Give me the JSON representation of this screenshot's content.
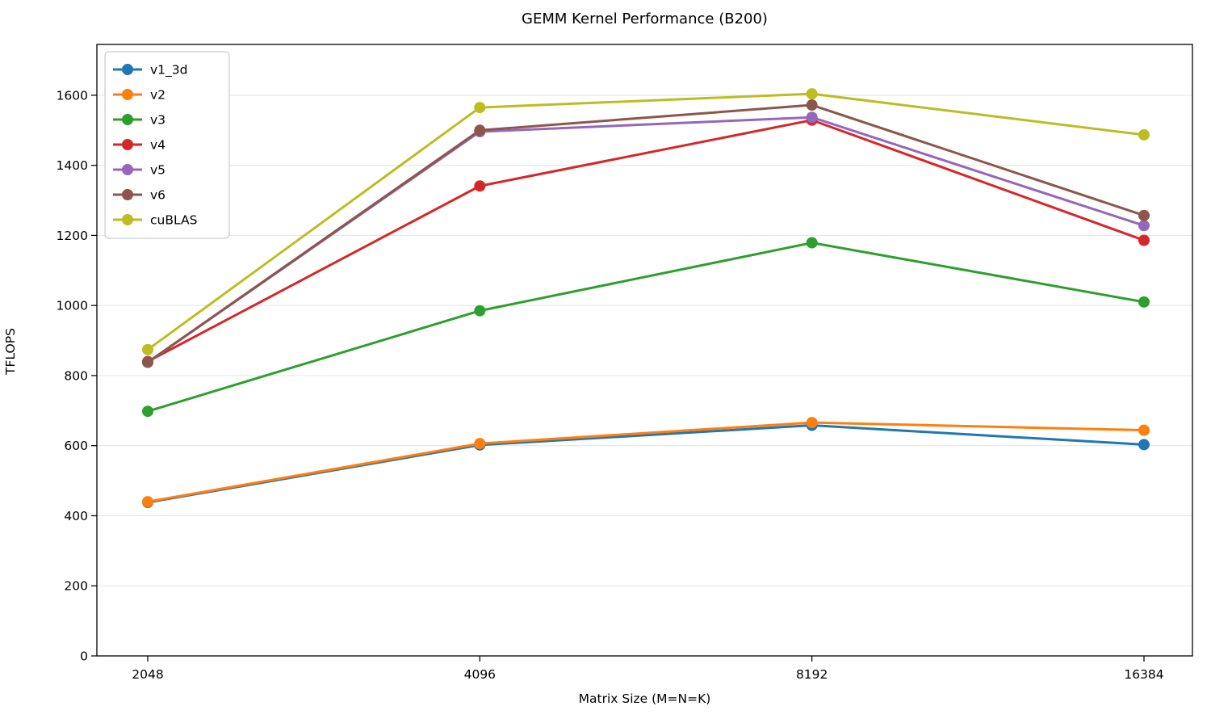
{
  "figure": {
    "background": "#ffffff",
    "text_color": "#000000",
    "grid_color": "#e6e6e6",
    "spine_color": "#000000",
    "legend_border_color": "#cccccc"
  },
  "chart_data": {
    "type": "line",
    "title": "GEMM Kernel Performance (B200)",
    "xlabel": "Matrix Size (M=N=K)",
    "ylabel": "TFLOPS",
    "categories": [
      "2048",
      "4096",
      "8192",
      "16384"
    ],
    "series": [
      {
        "name": "v1_3d",
        "color": "#1f77b4",
        "values": [
          438,
          602,
          658,
          603
        ]
      },
      {
        "name": "v2",
        "color": "#ff7f0e",
        "values": [
          440,
          606,
          666,
          644
        ]
      },
      {
        "name": "v3",
        "color": "#2ca02c",
        "values": [
          698,
          985,
          1179,
          1010
        ]
      },
      {
        "name": "v4",
        "color": "#d62728",
        "values": [
          840,
          1341,
          1529,
          1186
        ]
      },
      {
        "name": "v5",
        "color": "#9467bd",
        "values": [
          838,
          1496,
          1537,
          1228
        ]
      },
      {
        "name": "v6",
        "color": "#8c564b",
        "values": [
          838,
          1500,
          1572,
          1257
        ]
      },
      {
        "name": "cuBLAS",
        "color": "#bcbd22",
        "values": [
          874,
          1565,
          1604,
          1487
        ]
      }
    ],
    "yticks": [
      0,
      200,
      400,
      600,
      800,
      1000,
      1200,
      1400,
      1600
    ],
    "ylim": [
      0,
      1745
    ],
    "grid": "horizontal",
    "legend_position": "upper-left",
    "line_width": 3,
    "marker_radius": 7
  }
}
